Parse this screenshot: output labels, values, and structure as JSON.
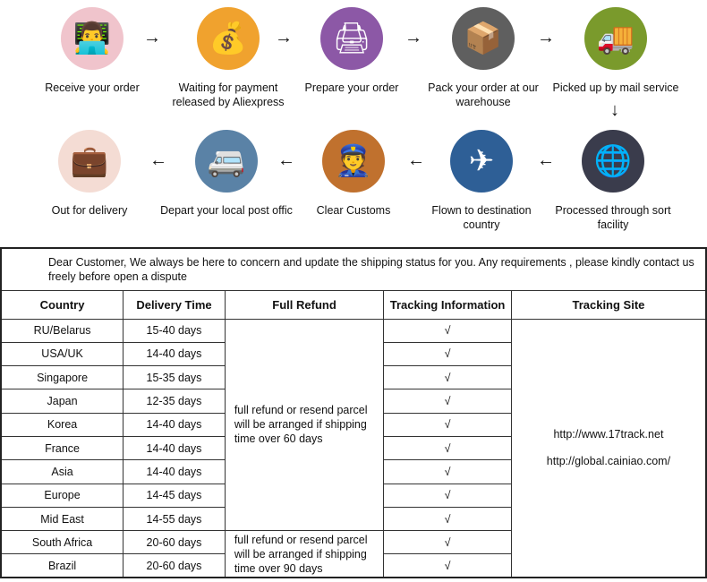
{
  "flow_row1": [
    {
      "label": "Receive your order",
      "icon": "person-at-desk-icon",
      "color": "#f0c4cc",
      "glyph": "👨‍💻"
    },
    {
      "label": "Waiting for payment released by Aliexpress",
      "icon": "money-bag-icon",
      "color": "#f0a22e",
      "glyph": "💰"
    },
    {
      "label": "Prepare your order",
      "icon": "printer-icon",
      "color": "#8c58a6",
      "glyph": "🖨"
    },
    {
      "label": "Pack your order at our warehouse",
      "icon": "package-handler-icon",
      "color": "#5f5f5f",
      "glyph": "📦"
    },
    {
      "label": "Picked up by mail service",
      "icon": "truck-icon",
      "color": "#7a9a2c",
      "glyph": "🚚"
    }
  ],
  "flow_row2": [
    {
      "label": "Out for delivery",
      "icon": "briefcase-icon",
      "color": "#f4dcd4",
      "glyph": "💼"
    },
    {
      "label": "Depart your local post offic",
      "icon": "van-icon",
      "color": "#5a82a6",
      "glyph": "🚐"
    },
    {
      "label": "Clear  Customs",
      "icon": "customs-officer-icon",
      "color": "#c0712e",
      "glyph": "👮"
    },
    {
      "label": "Flown to destination country",
      "icon": "airplane-icon",
      "color": "#2e5f96",
      "glyph": "✈"
    },
    {
      "label": "Processed through sort facility",
      "icon": "globe-icon",
      "color": "#3a3c4c",
      "glyph": "🌐"
    }
  ],
  "arrows": {
    "right": "→",
    "left": "←",
    "down": "↓"
  },
  "notice": "Dear Customer, We always be here to concern and update the shipping status for you.  Any requirements , please kindly contact us freely before open a dispute",
  "table": {
    "headers": [
      "Country",
      "Delivery Time",
      "Full Refund",
      "Tracking Information",
      "Tracking Site"
    ],
    "rows": [
      [
        "RU/Belarus",
        "15-40 days"
      ],
      [
        "USA/UK",
        "14-40 days"
      ],
      [
        "Singapore",
        "15-35 days"
      ],
      [
        "Japan",
        "12-35 days"
      ],
      [
        "Korea",
        "14-40 days"
      ],
      [
        "France",
        "14-40 days"
      ],
      [
        "Asia",
        "14-40 days"
      ],
      [
        "Europe",
        "14-45 days"
      ],
      [
        "Mid East",
        "14-55 days"
      ],
      [
        "South Africa",
        "20-60 days"
      ],
      [
        "Brazil",
        "20-60 days"
      ]
    ],
    "check": "√",
    "refund_60": "full refund or resend parcel will be arranged if shipping time over 60 days",
    "refund_90": "full refund or resend parcel will be arranged if shipping time over 90 days",
    "sites": [
      "http://www.17track.net",
      "http://global.cainiao.com/"
    ]
  }
}
